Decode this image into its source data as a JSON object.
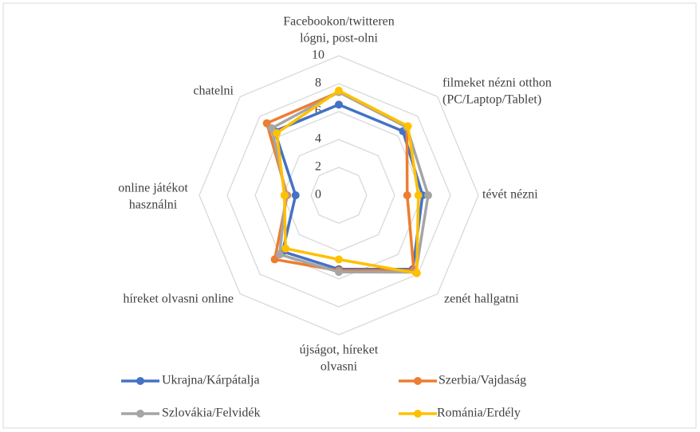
{
  "chart_data": {
    "type": "radar",
    "categories": [
      [
        "Facebookon/twitteren",
        "lógni, post-olni"
      ],
      [
        "filmeket nézni otthon",
        "(PC/Laptop/Tablet)"
      ],
      [
        "tévét nézni"
      ],
      [
        "zenét hallgatni"
      ],
      [
        "újságot, híreket",
        "olvasni"
      ],
      [
        "híreket olvasni online"
      ],
      [
        "online játékot",
        "használni"
      ],
      [
        "chatelni"
      ]
    ],
    "series": [
      {
        "name": "Ukrajna/Kárpátalja",
        "color": "#4472c4",
        "values": [
          6.5,
          6.5,
          6.0,
          7.5,
          5.3,
          5.7,
          3.1,
          6.5
        ]
      },
      {
        "name": "Szerbia/Vajdaság",
        "color": "#ed7d31",
        "values": [
          7.4,
          6.9,
          4.9,
          7.6,
          5.4,
          6.5,
          3.7,
          7.3
        ]
      },
      {
        "name": "Szlovákia/Felvidék",
        "color": "#a5a5a5",
        "values": [
          7.4,
          6.9,
          6.4,
          7.8,
          5.5,
          6.0,
          3.8,
          6.8
        ]
      },
      {
        "name": "Románia/Erdély",
        "color": "#ffc000",
        "values": [
          7.5,
          7.0,
          5.7,
          7.9,
          4.6,
          5.4,
          3.9,
          6.3
        ]
      }
    ],
    "ylim": [
      0,
      10
    ],
    "yticks": [
      0,
      2,
      4,
      6,
      8,
      10
    ],
    "grid": true
  }
}
